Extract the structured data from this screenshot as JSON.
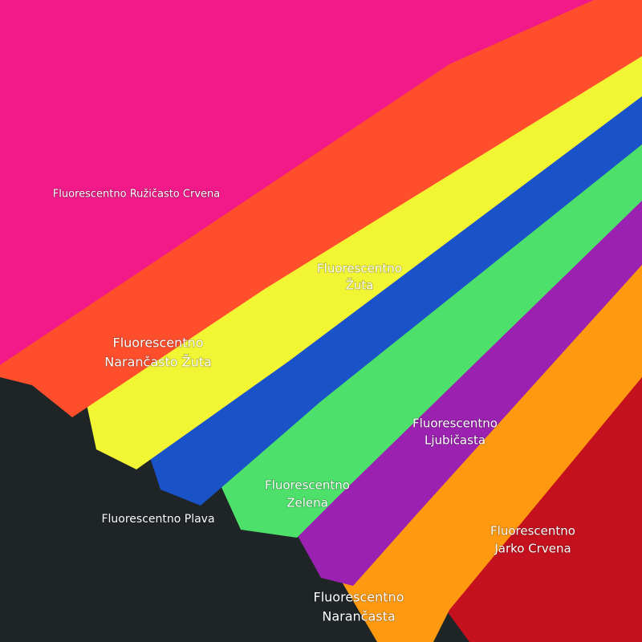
{
  "labels": [
    {
      "lines": [
        "Fluorescentno Ružičasto Crvena"
      ]
    },
    {
      "lines": [
        "Fluorescentno",
        "Žuta"
      ]
    },
    {
      "lines": [
        "Fluorescentno",
        "Narančasto Žuta"
      ]
    },
    {
      "lines": [
        "Fluorescentno",
        "Ljubičasta"
      ]
    },
    {
      "lines": [
        "Fluorescentno Plava"
      ]
    },
    {
      "lines": [
        "Fluorescentno",
        "Zelena"
      ]
    },
    {
      "lines": [
        "Fluorescentno",
        "Jarko Crvena"
      ]
    },
    {
      "lines": [
        "Fluorescentno",
        "Narančasta"
      ]
    }
  ]
}
